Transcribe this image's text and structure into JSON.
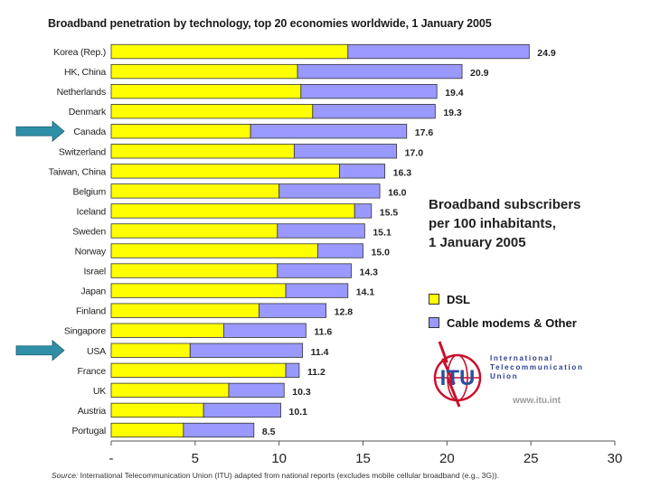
{
  "chart_data": {
    "type": "bar",
    "orientation": "horizontal",
    "stacked": true,
    "title": "Broadband penetration by technology, top 20 economies worldwide, 1 January 2005",
    "categories": [
      "Korea (Rep.)",
      "HK, China",
      "Netherlands",
      "Denmark",
      "Canada",
      "Switzerland",
      "Taiwan, China",
      "Belgium",
      "Iceland",
      "Sweden",
      "Norway",
      "Israel",
      "Japan",
      "Finland",
      "Singapore",
      "USA",
      "France",
      "UK",
      "Austria",
      "Portugal"
    ],
    "series": [
      {
        "name": "DSL",
        "color": "#ffff00",
        "values": [
          14.1,
          11.1,
          11.3,
          12.0,
          8.3,
          10.9,
          13.6,
          10.0,
          14.5,
          9.9,
          12.3,
          9.9,
          10.4,
          8.8,
          6.7,
          4.7,
          10.4,
          7.0,
          5.5,
          4.3
        ]
      },
      {
        "name": "Cable modems & Other",
        "color": "#9999ff",
        "values": [
          10.8,
          9.8,
          8.1,
          7.3,
          9.3,
          6.1,
          2.7,
          6.0,
          1.0,
          5.2,
          2.7,
          4.4,
          3.7,
          4.0,
          4.9,
          6.7,
          0.8,
          3.3,
          4.6,
          4.2
        ]
      }
    ],
    "totals": [
      "24.9",
      "20.9",
      "19.4",
      "19.3",
      "17.6",
      "17.0",
      "16.3",
      "16.0",
      "15.5",
      "15.1",
      "15.0",
      "14.3",
      "14.1",
      "12.8",
      "11.6",
      "11.4",
      "11.2",
      "10.3",
      "10.1",
      "8.5"
    ],
    "xlim": [
      0,
      30
    ],
    "xticks": [
      0,
      5,
      10,
      15,
      20,
      25,
      30
    ],
    "xtick_labels": [
      "-",
      "5",
      "10",
      "15",
      "20",
      "25",
      "30"
    ],
    "highlighted": [
      "Canada",
      "USA"
    ],
    "highlight_color": "#2e8fa6"
  },
  "annotation": {
    "line1": "Broadband subscribers",
    "line2": "per 100 inhabitants,",
    "line3": "1 January 2005"
  },
  "legend": {
    "dsl_label": "DSL",
    "cable_label": "Cable modems & Other"
  },
  "logo": {
    "mark": "ITU",
    "line1": "International",
    "line2": "Telecommunication",
    "line3": "Union",
    "website": "www.itu.int"
  },
  "source": {
    "label": "Source:",
    "text": "International Telecommunication Union (ITU) adapted from national reports (excludes mobile cellular broadband (e.g., 3G))."
  }
}
